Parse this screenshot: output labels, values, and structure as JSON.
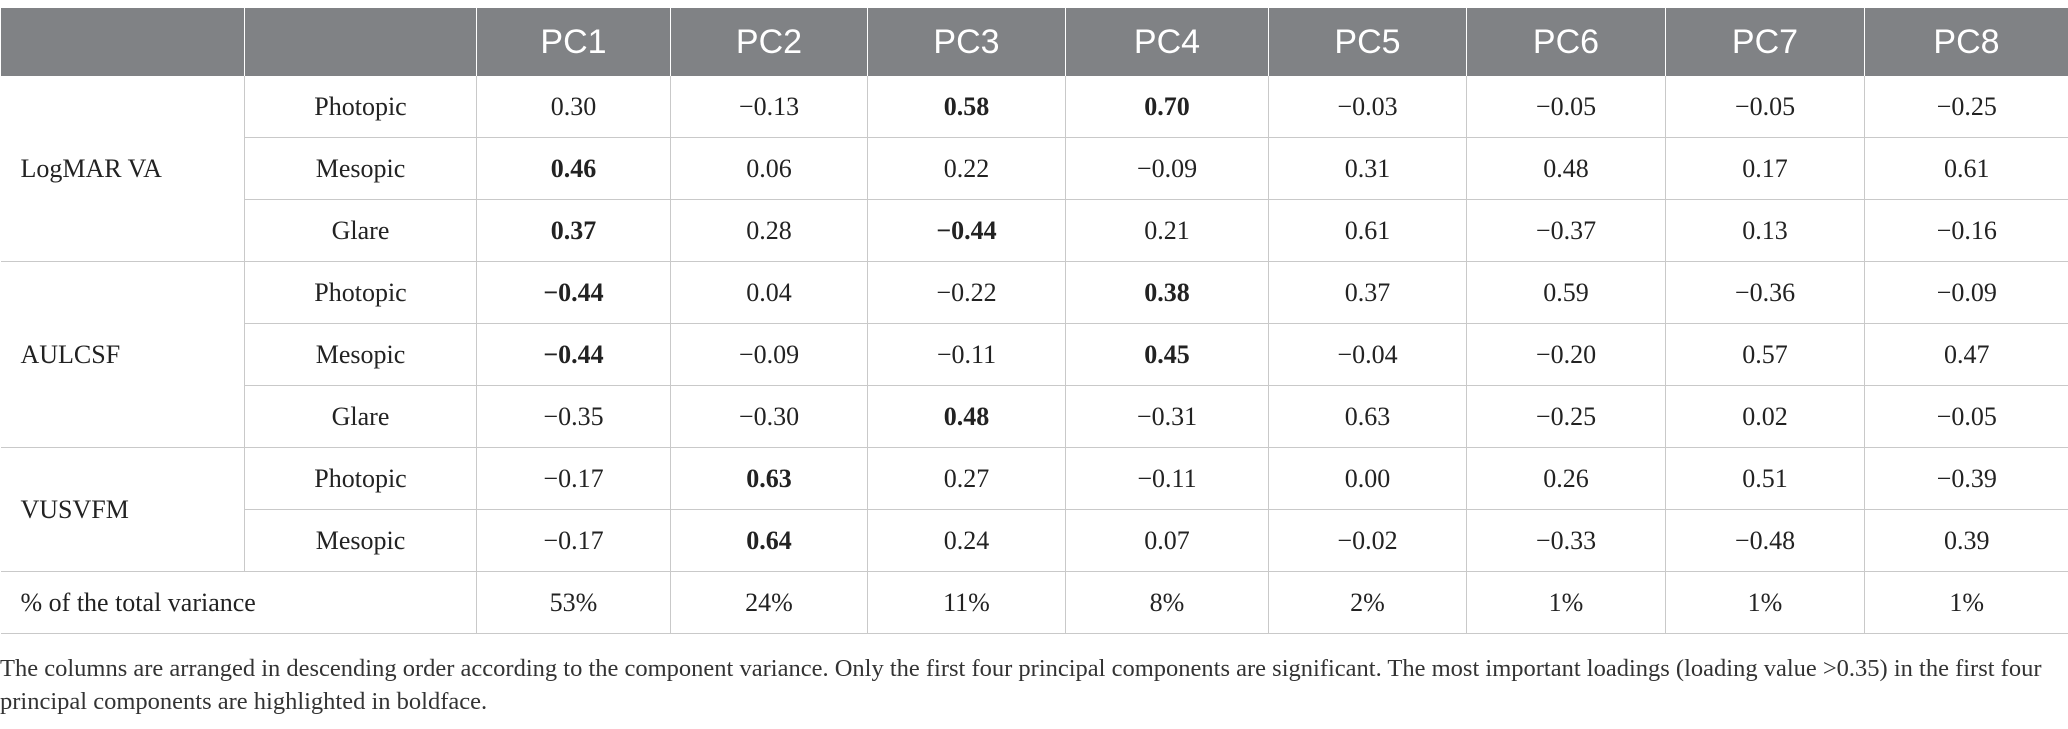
{
  "table": {
    "header": [
      "",
      "",
      "PC1",
      "PC2",
      "PC3",
      "PC4",
      "PC5",
      "PC6",
      "PC7",
      "PC8"
    ],
    "groups": [
      {
        "label": "LogMAR VA",
        "rows": [
          {
            "condition": "Photopic",
            "values": [
              "0.30",
              "−0.13",
              "0.58",
              "0.70",
              "−0.03",
              "−0.05",
              "−0.05",
              "−0.25"
            ],
            "bold": [
              false,
              false,
              true,
              true,
              false,
              false,
              false,
              false
            ]
          },
          {
            "condition": "Mesopic",
            "values": [
              "0.46",
              "0.06",
              "0.22",
              "−0.09",
              "0.31",
              "0.48",
              "0.17",
              "0.61"
            ],
            "bold": [
              true,
              false,
              false,
              false,
              false,
              false,
              false,
              false
            ]
          },
          {
            "condition": "Glare",
            "values": [
              "0.37",
              "0.28",
              "−0.44",
              "0.21",
              "0.61",
              "−0.37",
              "0.13",
              "−0.16"
            ],
            "bold": [
              true,
              false,
              true,
              false,
              false,
              false,
              false,
              false
            ]
          }
        ]
      },
      {
        "label": "AULCSF",
        "rows": [
          {
            "condition": "Photopic",
            "values": [
              "−0.44",
              "0.04",
              "−0.22",
              "0.38",
              "0.37",
              "0.59",
              "−0.36",
              "−0.09"
            ],
            "bold": [
              true,
              false,
              false,
              true,
              false,
              false,
              false,
              false
            ]
          },
          {
            "condition": "Mesopic",
            "values": [
              "−0.44",
              "−0.09",
              "−0.11",
              "0.45",
              "−0.04",
              "−0.20",
              "0.57",
              "0.47"
            ],
            "bold": [
              true,
              false,
              false,
              true,
              false,
              false,
              false,
              false
            ]
          },
          {
            "condition": "Glare",
            "values": [
              "−0.35",
              "−0.30",
              "0.48",
              "−0.31",
              "0.63",
              "−0.25",
              "0.02",
              "−0.05"
            ],
            "bold": [
              false,
              false,
              true,
              false,
              false,
              false,
              false,
              false
            ]
          }
        ]
      },
      {
        "label": "VUSVFM",
        "rows": [
          {
            "condition": "Photopic",
            "values": [
              "−0.17",
              "0.63",
              "0.27",
              "−0.11",
              "0.00",
              "0.26",
              "0.51",
              "−0.39"
            ],
            "bold": [
              false,
              true,
              false,
              false,
              false,
              false,
              false,
              false
            ]
          },
          {
            "condition": "Mesopic",
            "values": [
              "−0.17",
              "0.64",
              "0.24",
              "0.07",
              "−0.02",
              "−0.33",
              "−0.48",
              "0.39"
            ],
            "bold": [
              false,
              true,
              false,
              false,
              false,
              false,
              false,
              false
            ]
          }
        ]
      }
    ],
    "variance_row": {
      "label": "% of the total variance",
      "values": [
        "53%",
        "24%",
        "11%",
        "8%",
        "2%",
        "1%",
        "1%",
        "1%"
      ]
    }
  },
  "footnote": "The columns are arranged in descending order according to the component variance. Only the first four principal components are significant. The most important loadings (loading value >0.35) in the first four principal components are highlighted in boldface.",
  "colors": {
    "header_bg": "#808285",
    "header_text": "#ffffff",
    "grid_line": "#c9c9c9",
    "body_text": "#222222"
  }
}
